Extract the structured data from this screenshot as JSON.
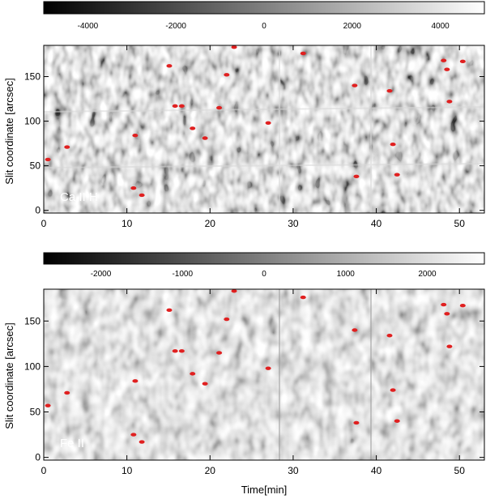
{
  "chart_data": [
    {
      "type": "heatmap",
      "panel_label": "Ca II H",
      "xlabel": "",
      "ylabel": "Slit coordinate [arcsec]",
      "xlim": [
        0,
        53
      ],
      "ylim": [
        -3,
        185
      ],
      "xticks": [
        0,
        10,
        20,
        30,
        40,
        50
      ],
      "yticks": [
        0,
        50,
        100,
        150
      ],
      "colorbar": {
        "range": [
          -5000,
          5000
        ],
        "ticks": [
          -4000,
          -2000,
          0,
          2000,
          4000
        ],
        "colormap": "grayscale"
      },
      "markers_color": "#e02020",
      "markers": [
        [
          0.5,
          57
        ],
        [
          2.8,
          71
        ],
        [
          10.8,
          25
        ],
        [
          11.0,
          84
        ],
        [
          11.8,
          17
        ],
        [
          15.1,
          162
        ],
        [
          15.8,
          117
        ],
        [
          16.6,
          117
        ],
        [
          17.9,
          92
        ],
        [
          19.4,
          81
        ],
        [
          21.1,
          115
        ],
        [
          22.0,
          152
        ],
        [
          22.9,
          183
        ],
        [
          27.0,
          98
        ],
        [
          31.2,
          176
        ],
        [
          37.4,
          140
        ],
        [
          37.6,
          38
        ],
        [
          41.6,
          134
        ],
        [
          42.0,
          74
        ],
        [
          42.5,
          40
        ],
        [
          48.1,
          168
        ],
        [
          48.5,
          158
        ],
        [
          48.8,
          122
        ],
        [
          50.4,
          167
        ]
      ]
    },
    {
      "type": "heatmap",
      "panel_label": "Fe II",
      "xlabel": "Time[min]",
      "ylabel": "Slit coordinate [arcsec]",
      "xlim": [
        0,
        53
      ],
      "ylim": [
        -3,
        185
      ],
      "xticks": [
        0,
        10,
        20,
        30,
        40,
        50
      ],
      "yticks": [
        0,
        50,
        100,
        150
      ],
      "colorbar": {
        "range": [
          -2700,
          2700
        ],
        "ticks": [
          -2000,
          -1000,
          0,
          1000,
          2000
        ],
        "colormap": "grayscale"
      },
      "markers_color": "#e02020",
      "markers": [
        [
          0.5,
          57
        ],
        [
          2.8,
          71
        ],
        [
          10.8,
          25
        ],
        [
          11.0,
          84
        ],
        [
          11.8,
          17
        ],
        [
          15.1,
          162
        ],
        [
          15.8,
          117
        ],
        [
          16.6,
          117
        ],
        [
          17.9,
          92
        ],
        [
          19.4,
          81
        ],
        [
          21.1,
          115
        ],
        [
          22.0,
          152
        ],
        [
          22.9,
          183
        ],
        [
          27.0,
          98
        ],
        [
          31.2,
          176
        ],
        [
          37.4,
          140
        ],
        [
          37.6,
          38
        ],
        [
          41.6,
          134
        ],
        [
          42.0,
          74
        ],
        [
          42.5,
          40
        ],
        [
          48.1,
          168
        ],
        [
          48.5,
          158
        ],
        [
          48.8,
          122
        ],
        [
          50.4,
          167
        ]
      ]
    }
  ]
}
